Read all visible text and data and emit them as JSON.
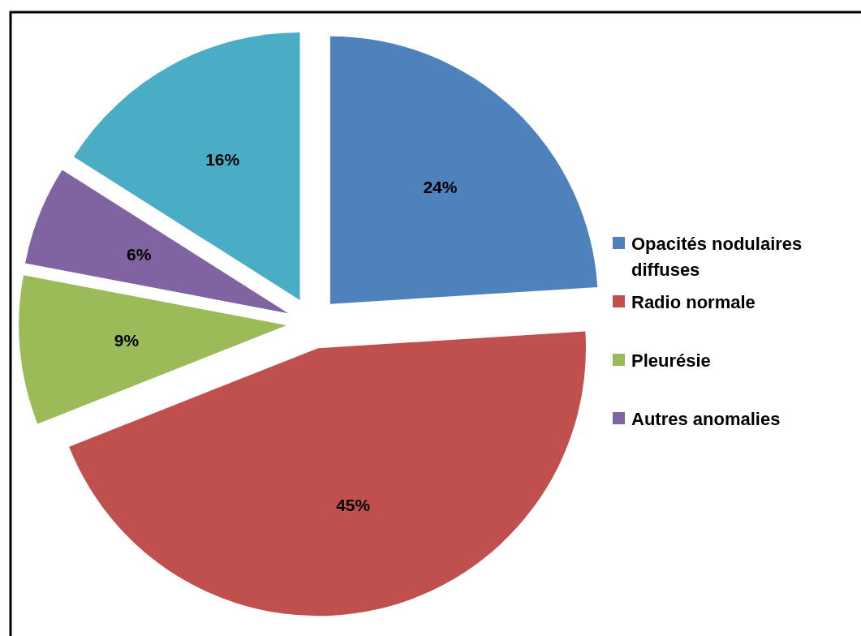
{
  "chart_data": {
    "type": "pie",
    "categories": [
      "Opacités nodulaires diffuses",
      "Radio normale",
      "Pleurésie",
      "Autres anomalies",
      null
    ],
    "values": [
      24,
      45,
      9,
      6,
      16
    ],
    "colors": [
      "#4f81bd",
      "#c0504d",
      "#9bbb59",
      "#8064a2",
      "#4bacc6"
    ],
    "value_labels": [
      "24%",
      "45%",
      "9%",
      "6%",
      "16%"
    ],
    "legend": "right"
  }
}
